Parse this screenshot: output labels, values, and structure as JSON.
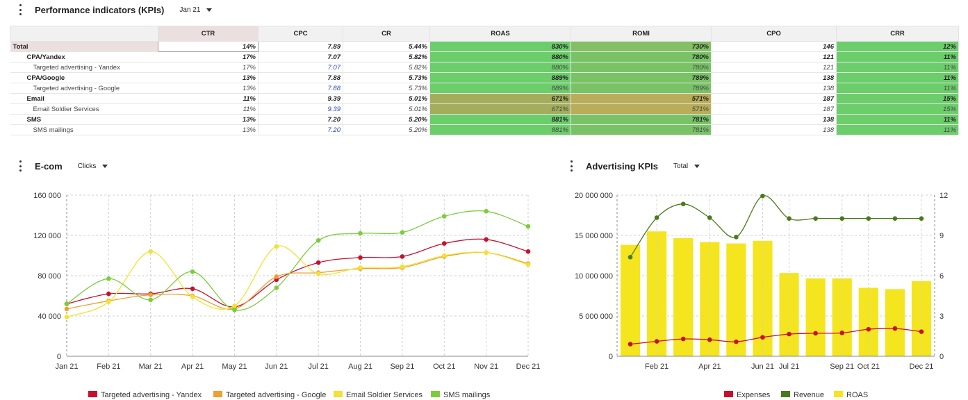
{
  "kpi_panel": {
    "title": "Performance indicators (KPIs)",
    "period": "Jan 21",
    "columns": [
      "CTR",
      "CPC",
      "CR",
      "ROAS",
      "ROMI",
      "CPO",
      "CRR"
    ],
    "rows": [
      {
        "level": 0,
        "label": "Total",
        "ctr": "14%",
        "cpc": "7.89",
        "cr": "5.44%",
        "roas": "830%",
        "romi": "730%",
        "cpo": "146",
        "crr": "12%"
      },
      {
        "level": 1,
        "label": "CPA/Yandex",
        "ctr": "17%",
        "cpc": "7.07",
        "cr": "5.82%",
        "roas": "880%",
        "romi": "780%",
        "cpo": "121",
        "crr": "11%"
      },
      {
        "level": 2,
        "label": "Targeted advertising - Yandex",
        "ctr": "17%",
        "cpc": "7.07",
        "cr": "5.82%",
        "roas": "880%",
        "romi": "780%",
        "cpo": "121",
        "crr": "11%"
      },
      {
        "level": 1,
        "label": "CPA/Google",
        "ctr": "13%",
        "cpc": "7.88",
        "cr": "5.73%",
        "roas": "889%",
        "romi": "789%",
        "cpo": "138",
        "crr": "11%"
      },
      {
        "level": 2,
        "label": "Targeted advertising - Google",
        "ctr": "13%",
        "cpc": "7.88",
        "cr": "5.73%",
        "roas": "889%",
        "romi": "789%",
        "cpo": "138",
        "crr": "11%"
      },
      {
        "level": 1,
        "label": "Email",
        "ctr": "11%",
        "cpc": "9.39",
        "cr": "5.01%",
        "roas": "671%",
        "romi": "571%",
        "cpo": "187",
        "crr": "15%"
      },
      {
        "level": 2,
        "label": "Email Soldier Services",
        "ctr": "11%",
        "cpc": "9.39",
        "cr": "5.01%",
        "roas": "671%",
        "romi": "571%",
        "cpo": "187",
        "crr": "15%"
      },
      {
        "level": 1,
        "label": "SMS",
        "ctr": "13%",
        "cpc": "7.20",
        "cr": "5.20%",
        "roas": "881%",
        "romi": "781%",
        "cpo": "138",
        "crr": "11%"
      },
      {
        "level": 2,
        "label": "SMS mailings",
        "ctr": "13%",
        "cpc": "7.20",
        "cr": "5.20%",
        "roas": "881%",
        "romi": "781%",
        "cpo": "138",
        "crr": "11%"
      }
    ],
    "heat_colors": {
      "roas_high": "#6ccd6b",
      "roas_low": "#a3ad5c",
      "romi_high": "#79c366",
      "romi_low": "#b9ad59",
      "crr": "#6ccd6b"
    }
  },
  "ecom_panel": {
    "title": "E-com",
    "metric": "Clicks"
  },
  "ads_panel": {
    "title": "Advertising KPIs",
    "segment": "Total"
  },
  "chart_data": [
    {
      "type": "line",
      "title": "E-com",
      "categories": [
        "Jan 21",
        "Feb 21",
        "Mar 21",
        "Apr 21",
        "May 21",
        "Jun 21",
        "Jul 21",
        "Aug 21",
        "Sep 21",
        "Oct 21",
        "Nov 21",
        "Dec 21"
      ],
      "yticks": [
        "0",
        "40 000",
        "80 000",
        "120 000",
        "160 000"
      ],
      "ylim": [
        0,
        160000
      ],
      "series": [
        {
          "name": "Targeted advertising - Yandex",
          "color": "#c8102e",
          "values": [
            52000,
            62000,
            62000,
            67000,
            49000,
            76000,
            93000,
            98000,
            99000,
            112000,
            116000,
            104000
          ]
        },
        {
          "name": "Targeted advertising - Google",
          "color": "#f0a030",
          "values": [
            47000,
            55000,
            61000,
            60000,
            47000,
            79000,
            83000,
            87000,
            88000,
            99000,
            103000,
            92000
          ]
        },
        {
          "name": "Email Soldier Services",
          "color": "#f2e233",
          "values": [
            39000,
            54000,
            104000,
            59000,
            50000,
            109000,
            82000,
            88000,
            89000,
            100000,
            103000,
            91000
          ]
        },
        {
          "name": "SMS mailings",
          "color": "#7ccd3a",
          "values": [
            52000,
            77000,
            56000,
            84000,
            46000,
            68000,
            115000,
            122000,
            123000,
            139000,
            144000,
            129000
          ]
        }
      ]
    },
    {
      "type": "bar",
      "title": "Advertising KPIs",
      "xticks": [
        "Feb 21",
        "Apr 21",
        "Jun 21",
        "Jul 21",
        "Sep 21",
        "Oct 21",
        "Dec 21"
      ],
      "yticks_left": [
        "0",
        "5 000 000",
        "10 000 000",
        "15 000 000",
        "20 000 000"
      ],
      "yticks_right": [
        "0",
        "3",
        "6",
        "9",
        "12"
      ],
      "ylim_left": [
        0,
        20000000
      ],
      "ylim_right": [
        0,
        12
      ],
      "series": [
        {
          "name": "Expenses",
          "kind": "line",
          "axis": "left",
          "color": "#c8102e",
          "values": [
            1500000,
            1850000,
            2150000,
            2050000,
            1800000,
            2350000,
            2750000,
            2850000,
            2900000,
            3350000,
            3450000,
            3050000
          ]
        },
        {
          "name": "Revenue",
          "kind": "line",
          "axis": "left",
          "color": "#4a7a1a",
          "values": [
            12300000,
            17200000,
            18900000,
            17200000,
            14800000,
            19900000,
            17100000,
            17100000,
            17100000,
            17100000,
            17100000,
            17100000
          ]
        },
        {
          "name": "ROAS",
          "kind": "bar",
          "axis": "right",
          "color": "#f4e51f",
          "values": [
            8.3,
            9.3,
            8.8,
            8.5,
            8.4,
            8.6,
            6.2,
            5.8,
            5.8,
            5.1,
            5.0,
            5.6
          ]
        }
      ]
    }
  ]
}
